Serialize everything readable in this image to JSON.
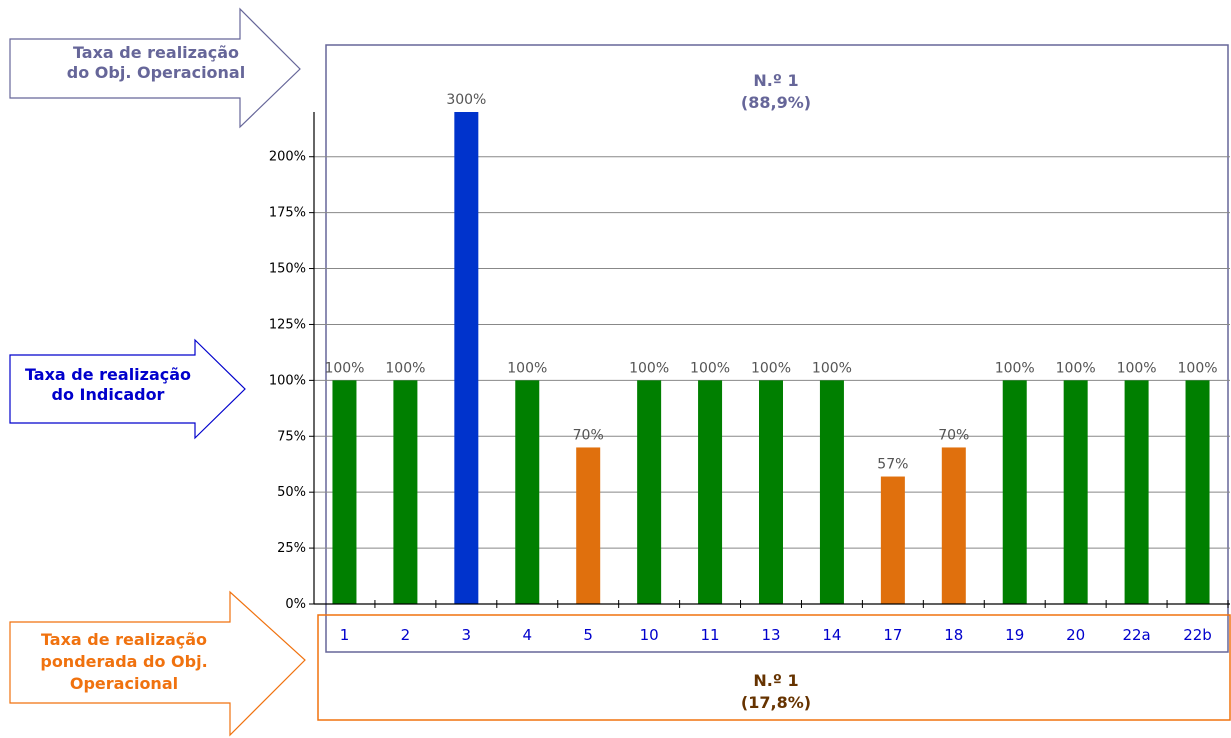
{
  "colors": {
    "green": "#007f00",
    "orange": "#e0700d",
    "blue": "#0033cc",
    "obj_purple": "#666699",
    "indicator_blue": "#0000cc",
    "weighted_orange": "#f0720f",
    "weighted_brown": "#663300",
    "grid": "#888888",
    "axis": "#000000"
  },
  "callouts": {
    "objective_rate": {
      "line1": "Taxa de realização",
      "line2": "do Obj. Operacional"
    },
    "indicator_rate": {
      "line1": "Taxa de realização",
      "line2": "do Indicador"
    },
    "weighted_rate": {
      "line1": "Taxa de realização",
      "line2": "ponderada do Obj.",
      "line3": "Operacional"
    }
  },
  "objective_box": {
    "number": "N.º 1",
    "rate": "(88,9%)"
  },
  "weighted_box": {
    "number": "N.º 1",
    "rate": "(17,8%)"
  },
  "chart_data": {
    "type": "bar",
    "categories": [
      "1",
      "2",
      "3",
      "4",
      "5",
      "10",
      "11",
      "13",
      "14",
      "17",
      "18",
      "19",
      "20",
      "22a",
      "22b"
    ],
    "values": [
      100,
      100,
      300,
      100,
      70,
      100,
      100,
      100,
      100,
      57,
      70,
      100,
      100,
      100,
      100
    ],
    "value_labels": [
      "100%",
      "100%",
      "300%",
      "100%",
      "70%",
      "100%",
      "100%",
      "100%",
      "100%",
      "57%",
      "70%",
      "100%",
      "100%",
      "100%",
      "100%"
    ],
    "bar_colors": [
      "green",
      "green",
      "blue",
      "green",
      "orange",
      "green",
      "green",
      "green",
      "green",
      "orange",
      "orange",
      "green",
      "green",
      "green",
      "green"
    ],
    "ylim": [
      0,
      220
    ],
    "yticks": [
      0,
      25,
      50,
      75,
      100,
      125,
      150,
      175,
      200
    ],
    "ytick_labels": [
      "0%",
      "25%",
      "50%",
      "75%",
      "100%",
      "125%",
      "150%",
      "175%",
      "200%"
    ],
    "grid": true,
    "clipped_top": true
  }
}
